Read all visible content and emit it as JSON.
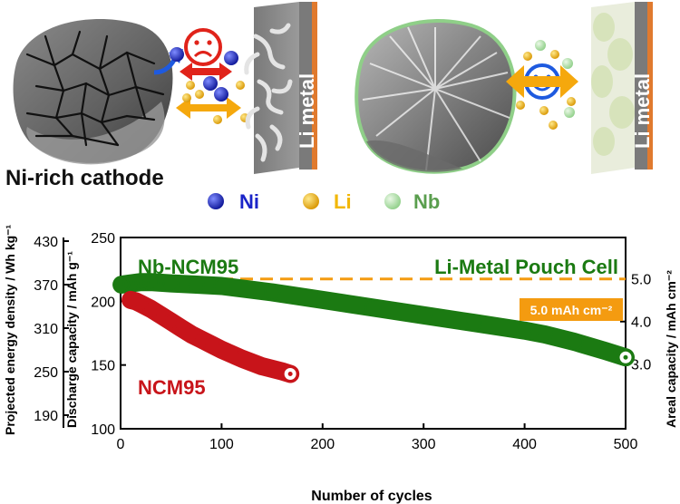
{
  "top_panel": {
    "cathode_label": "Ni-rich cathode",
    "li_metal_label_left": "Li metal",
    "li_metal_label_right": "Li metal",
    "legend": [
      {
        "label": "Ni",
        "color": "#1a24c8"
      },
      {
        "label": "Li",
        "color": "#f2b705"
      },
      {
        "label": "Nb",
        "color": "#9ed69a"
      }
    ],
    "faces": {
      "left": "sad",
      "right": "happy"
    }
  },
  "colors": {
    "green_series": "#1b7a12",
    "red_series": "#c8141a",
    "dashed_line": "#f49b10",
    "current_box": "#f49b10",
    "arrow_red": "#e0231a",
    "arrow_orange": "#f5a80d",
    "copper": "#e07a2e"
  },
  "chart_data": {
    "type": "scatter",
    "title_left": "Nb-NCM95",
    "title_right": "Li-Metal Pouch Cell",
    "xlabel": "Number of cycles",
    "ylabel_left": "Discharge capacity / mAh g⁻¹",
    "ylabel_far_left": "Projected energy density / Wh kg⁻¹",
    "ylabel_right": "Areal capacity / mAh cm⁻²",
    "xlim": [
      0,
      500
    ],
    "ylim": [
      100,
      250
    ],
    "x_ticks": [
      "0",
      "100",
      "200",
      "300",
      "400",
      "500"
    ],
    "y_ticks": [
      "100",
      "150",
      "200",
      "250"
    ],
    "energy_ticks": [
      "190",
      "250",
      "310",
      "370",
      "430"
    ],
    "areal_ticks": [
      "3.0",
      "4.0",
      "5.0"
    ],
    "dashed_reference": {
      "y": 5.0,
      "label": "5.0 mAh cm⁻²"
    },
    "series": [
      {
        "name": "Nb-NCM95",
        "color": "#1b7a12",
        "x": [
          1,
          10,
          20,
          30,
          50,
          75,
          100,
          150,
          200,
          250,
          300,
          350,
          400,
          420,
          450,
          480,
          500
        ],
        "values": [
          213,
          214,
          215,
          215,
          214,
          213,
          212,
          207,
          201,
          195,
          189,
          183,
          177,
          174,
          168,
          161,
          156
        ]
      },
      {
        "name": "NCM95",
        "color": "#c8141a",
        "x": [
          10,
          15,
          20,
          30,
          40,
          50,
          60,
          70,
          80,
          90,
          100,
          120,
          140,
          160,
          168
        ],
        "values": [
          201,
          200,
          198,
          194,
          189,
          184,
          179,
          174,
          170,
          166,
          162,
          155,
          149,
          145,
          143
        ]
      }
    ]
  }
}
